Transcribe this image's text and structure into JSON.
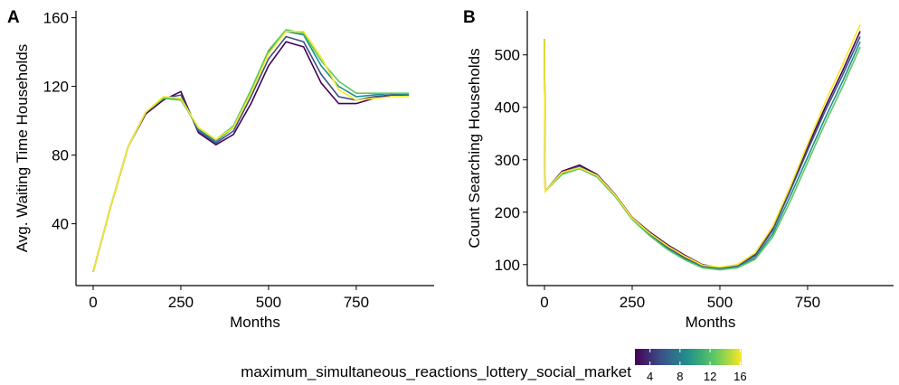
{
  "chart_data": [
    {
      "type": "line",
      "panel_label": "A",
      "xlabel": "Months",
      "ylabel": "Avg. Waiting Time Households",
      "x": [
        0,
        50,
        100,
        150,
        200,
        250,
        300,
        350,
        400,
        450,
        500,
        550,
        600,
        650,
        700,
        750,
        800,
        850,
        900
      ],
      "xlim": [
        -49,
        972
      ],
      "xticks": [
        0,
        250,
        500,
        750
      ],
      "ylim": [
        4,
        164
      ],
      "yticks": [
        40,
        80,
        120,
        160
      ],
      "series": [
        {
          "color": "#440154",
          "values": [
            12,
            50,
            85,
            104,
            112,
            117,
            93,
            86,
            92,
            110,
            132,
            146,
            143,
            122,
            110,
            110,
            113,
            115,
            115
          ]
        },
        {
          "color": "#3b528b",
          "values": [
            12,
            50,
            85,
            105,
            113,
            115,
            94,
            87,
            94,
            114,
            136,
            149,
            146,
            127,
            114,
            112,
            114,
            115,
            115
          ]
        },
        {
          "color": "#21918c",
          "values": [
            12,
            50,
            85,
            105,
            113,
            113,
            95,
            88,
            96,
            117,
            140,
            152,
            150,
            132,
            120,
            114,
            115,
            116,
            115
          ]
        },
        {
          "color": "#5ec962",
          "values": [
            12,
            50,
            85,
            105,
            113,
            112,
            96,
            89,
            97,
            118,
            141,
            153,
            151,
            135,
            123,
            116,
            116,
            116,
            116
          ]
        },
        {
          "color": "#fde725",
          "values": [
            12,
            50,
            85,
            105,
            114,
            113,
            96,
            89,
            96,
            116,
            139,
            152,
            152,
            137,
            118,
            112,
            113,
            114,
            114
          ]
        }
      ]
    },
    {
      "type": "line",
      "panel_label": "B",
      "xlabel": "Months",
      "ylabel": "Count Searching Households",
      "x": [
        0,
        2,
        50,
        100,
        150,
        200,
        250,
        300,
        350,
        400,
        450,
        500,
        550,
        600,
        650,
        700,
        750,
        800,
        850,
        900
      ],
      "xlim": [
        -49,
        995
      ],
      "xticks": [
        0,
        250,
        500,
        750
      ],
      "ylim": [
        60,
        584
      ],
      "yticks": [
        100,
        200,
        300,
        400,
        500
      ],
      "series": [
        {
          "color": "#440154",
          "values": [
            530,
            240,
            278,
            290,
            272,
            235,
            190,
            162,
            138,
            118,
            100,
            94,
            100,
            120,
            170,
            245,
            325,
            400,
            470,
            545
          ]
        },
        {
          "color": "#3b528b",
          "values": [
            530,
            240,
            275,
            287,
            270,
            233,
            188,
            158,
            133,
            113,
            97,
            92,
            97,
            117,
            165,
            240,
            318,
            393,
            462,
            535
          ]
        },
        {
          "color": "#21918c",
          "values": [
            530,
            240,
            273,
            284,
            268,
            232,
            187,
            156,
            130,
            110,
            95,
            91,
            95,
            113,
            158,
            230,
            305,
            380,
            450,
            525
          ]
        },
        {
          "color": "#5ec962",
          "values": [
            530,
            240,
            272,
            283,
            267,
            231,
            186,
            155,
            129,
            109,
            94,
            90,
            94,
            110,
            152,
            220,
            295,
            370,
            440,
            515
          ]
        },
        {
          "color": "#fde725",
          "values": [
            530,
            240,
            276,
            285,
            270,
            234,
            189,
            160,
            136,
            116,
            99,
            95,
            100,
            122,
            172,
            248,
            330,
            410,
            482,
            558
          ]
        }
      ]
    }
  ],
  "colorbar": {
    "title": "maximum_simultaneous_reactions_lottery_social_market",
    "lim": [
      2,
      16.2
    ],
    "ticks": [
      4,
      8,
      12,
      16
    ],
    "colors": [
      "#440154",
      "#3b528b",
      "#21918c",
      "#5ec962",
      "#fde725"
    ]
  }
}
